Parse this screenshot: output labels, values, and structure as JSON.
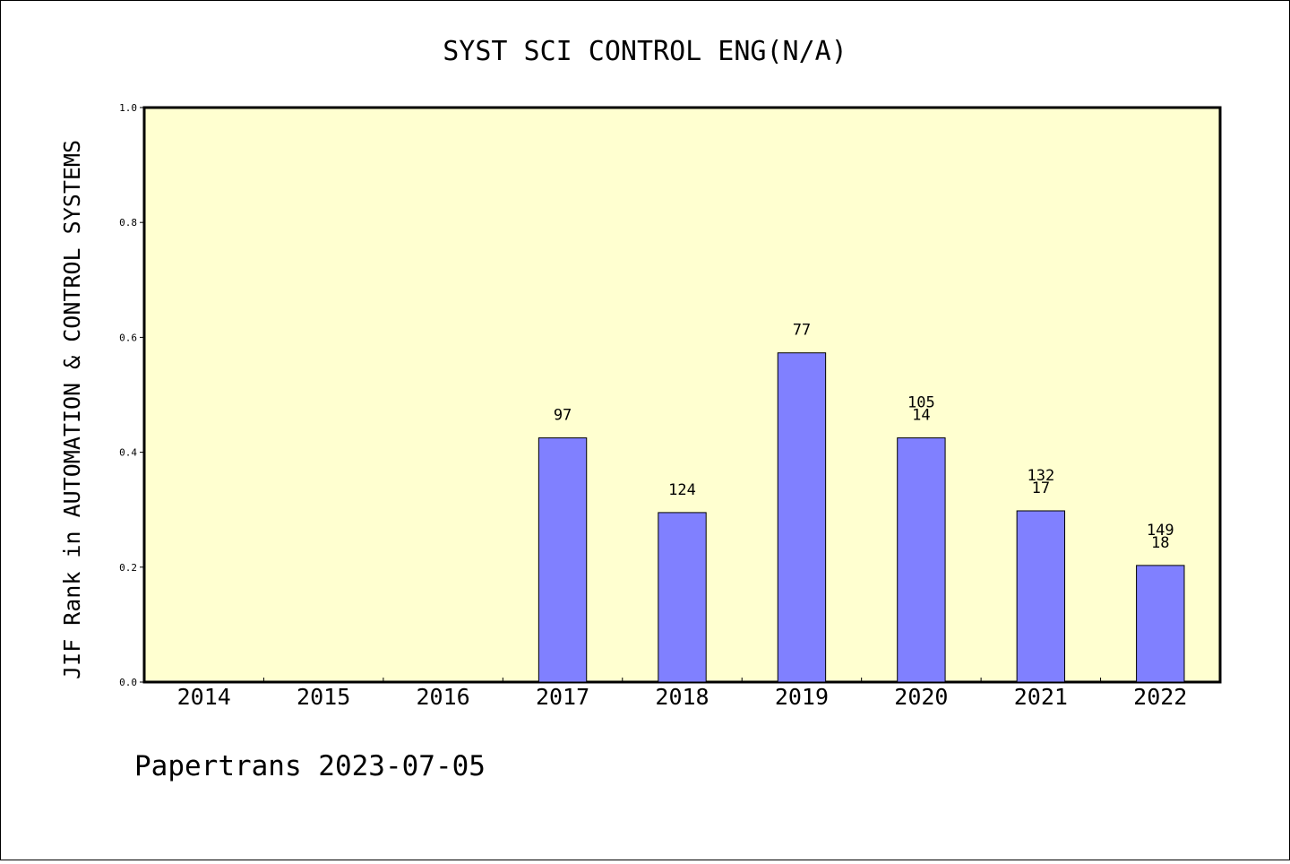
{
  "chart_data": {
    "type": "bar",
    "title": "SYST SCI CONTROL ENG(N/A)",
    "xlabel": "",
    "ylabel": "JIF Rank in AUTOMATION & CONTROL SYSTEMS",
    "ylim": [
      0,
      1.0
    ],
    "yticks": [
      "0.0",
      "0.2",
      "0.4",
      "0.6",
      "0.8",
      "1.0"
    ],
    "grid": false,
    "categories": [
      "2014",
      "2015",
      "2016",
      "2017",
      "2018",
      "2019",
      "2020",
      "2021",
      "2022"
    ],
    "values": [
      null,
      null,
      null,
      0.425,
      0.295,
      0.573,
      0.425,
      0.298,
      0.203
    ],
    "bar_labels": [
      [],
      [],
      [],
      [
        "97"
      ],
      [
        "124"
      ],
      [
        "77"
      ],
      [
        "105",
        "14"
      ],
      [
        "132",
        "17"
      ],
      [
        "149",
        "18"
      ]
    ],
    "colors": {
      "plot_background": "#ffffd0",
      "bar_fill": "#8080ff",
      "bar_stroke": "#000000"
    }
  },
  "footer": {
    "text": "Papertrans 2023-07-05"
  }
}
